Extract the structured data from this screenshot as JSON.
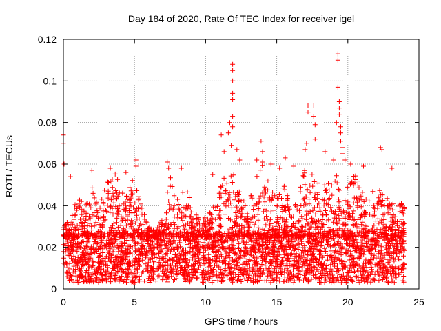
{
  "chart_data": {
    "type": "scatter",
    "title": "Day 184 of 2020, Rate Of TEC Index for receiver igel",
    "xlabel": "GPS time / hours",
    "ylabel": "ROTI / TECUs",
    "xlim": [
      0,
      25
    ],
    "ylim": [
      0,
      0.12
    ],
    "xticks": [
      0,
      5,
      10,
      15,
      20,
      25
    ],
    "xtick_labels": [
      "0",
      "5",
      "10",
      "15",
      "20",
      "25"
    ],
    "yticks": [
      0,
      0.02,
      0.04,
      0.06,
      0.08,
      0.1,
      0.12
    ],
    "ytick_labels": [
      "0",
      "0.02",
      "0.04",
      "0.06",
      "0.08",
      "0.1",
      "0.12"
    ],
    "grid": true,
    "marker": "+",
    "color": "#ff0000",
    "baseline_band": [
      0.005,
      0.025
    ],
    "data_range_hours": [
      0,
      24
    ],
    "envelope": [
      [
        0.0,
        0.03
      ],
      [
        0.5,
        0.035
      ],
      [
        1.0,
        0.045
      ],
      [
        1.5,
        0.04
      ],
      [
        2.0,
        0.05
      ],
      [
        2.5,
        0.04
      ],
      [
        3.0,
        0.05
      ],
      [
        3.5,
        0.058
      ],
      [
        4.0,
        0.05
      ],
      [
        4.5,
        0.045
      ],
      [
        5.0,
        0.058
      ],
      [
        5.5,
        0.04
      ],
      [
        6.0,
        0.03
      ],
      [
        6.5,
        0.028
      ],
      [
        7.0,
        0.035
      ],
      [
        7.5,
        0.055
      ],
      [
        8.0,
        0.045
      ],
      [
        8.5,
        0.055
      ],
      [
        9.0,
        0.04
      ],
      [
        9.5,
        0.035
      ],
      [
        10.0,
        0.035
      ],
      [
        10.5,
        0.04
      ],
      [
        11.0,
        0.05
      ],
      [
        11.5,
        0.06
      ],
      [
        12.0,
        0.055
      ],
      [
        12.5,
        0.045
      ],
      [
        13.0,
        0.04
      ],
      [
        13.5,
        0.055
      ],
      [
        14.0,
        0.06
      ],
      [
        14.5,
        0.05
      ],
      [
        15.0,
        0.045
      ],
      [
        15.5,
        0.05
      ],
      [
        16.0,
        0.04
      ],
      [
        16.5,
        0.045
      ],
      [
        17.0,
        0.06
      ],
      [
        17.5,
        0.055
      ],
      [
        18.0,
        0.05
      ],
      [
        18.5,
        0.05
      ],
      [
        19.0,
        0.055
      ],
      [
        19.5,
        0.06
      ],
      [
        20.0,
        0.05
      ],
      [
        20.5,
        0.055
      ],
      [
        21.0,
        0.05
      ],
      [
        21.5,
        0.05
      ],
      [
        22.0,
        0.05
      ],
      [
        22.5,
        0.045
      ],
      [
        23.0,
        0.045
      ],
      [
        23.5,
        0.045
      ],
      [
        24.0,
        0.04
      ]
    ],
    "outliers": [
      [
        0.0,
        0.074
      ],
      [
        0.0,
        0.07
      ],
      [
        0.05,
        0.06
      ],
      [
        0.5,
        0.054
      ],
      [
        2.0,
        0.057
      ],
      [
        3.3,
        0.058
      ],
      [
        4.4,
        0.056
      ],
      [
        5.1,
        0.062
      ],
      [
        5.1,
        0.059
      ],
      [
        7.3,
        0.061
      ],
      [
        7.4,
        0.058
      ],
      [
        8.3,
        0.058
      ],
      [
        10.5,
        0.055
      ],
      [
        11.1,
        0.074
      ],
      [
        11.3,
        0.066
      ],
      [
        11.6,
        0.075
      ],
      [
        11.7,
        0.08
      ],
      [
        11.9,
        0.108
      ],
      [
        11.9,
        0.105
      ],
      [
        11.9,
        0.1
      ],
      [
        11.9,
        0.094
      ],
      [
        11.9,
        0.091
      ],
      [
        11.9,
        0.083
      ],
      [
        11.9,
        0.078
      ],
      [
        11.8,
        0.069
      ],
      [
        12.2,
        0.067
      ],
      [
        12.4,
        0.062
      ],
      [
        13.6,
        0.062
      ],
      [
        13.9,
        0.071
      ],
      [
        14.0,
        0.066
      ],
      [
        14.0,
        0.061
      ],
      [
        14.6,
        0.06
      ],
      [
        15.2,
        0.058
      ],
      [
        15.6,
        0.063
      ],
      [
        16.2,
        0.059
      ],
      [
        17.0,
        0.067
      ],
      [
        17.1,
        0.07
      ],
      [
        17.2,
        0.085
      ],
      [
        17.2,
        0.088
      ],
      [
        17.6,
        0.088
      ],
      [
        17.6,
        0.083
      ],
      [
        17.7,
        0.079
      ],
      [
        17.7,
        0.072
      ],
      [
        18.4,
        0.066
      ],
      [
        19.0,
        0.062
      ],
      [
        19.2,
        0.08
      ],
      [
        19.3,
        0.113
      ],
      [
        19.3,
        0.11
      ],
      [
        19.3,
        0.097
      ],
      [
        19.4,
        0.09
      ],
      [
        19.4,
        0.087
      ],
      [
        19.4,
        0.084
      ],
      [
        19.5,
        0.078
      ],
      [
        19.5,
        0.075
      ],
      [
        19.5,
        0.071
      ],
      [
        19.6,
        0.068
      ],
      [
        19.6,
        0.065
      ],
      [
        19.8,
        0.062
      ],
      [
        20.2,
        0.06
      ],
      [
        21.1,
        0.059
      ],
      [
        22.3,
        0.068
      ],
      [
        22.4,
        0.067
      ],
      [
        23.1,
        0.058
      ]
    ],
    "seed": 184
  }
}
